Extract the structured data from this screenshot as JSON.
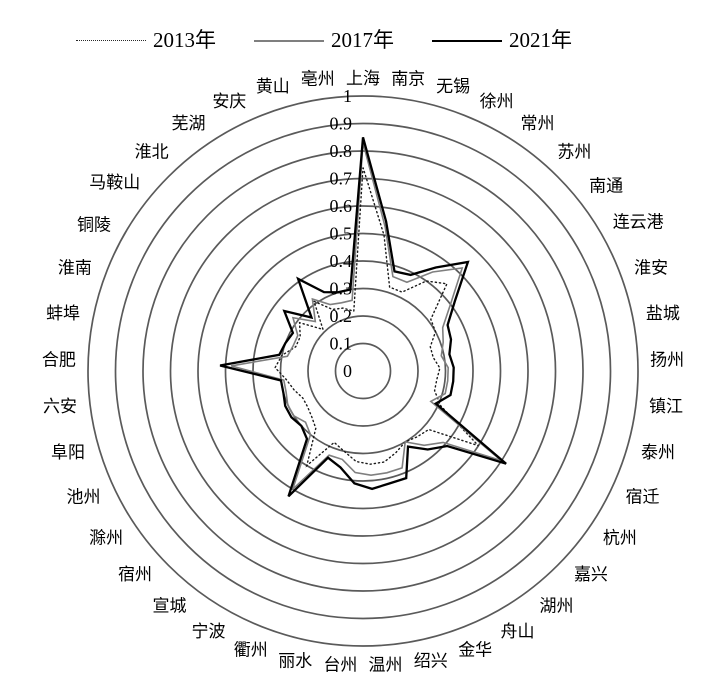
{
  "legend": {
    "items": [
      {
        "label": "2013年",
        "style": "dotted",
        "color": "#1a1a1a"
      },
      {
        "label": "2017年",
        "style": "solid",
        "color": "#7f7f7f"
      },
      {
        "label": "2021年",
        "style": "solid-bold",
        "color": "#000000"
      }
    ]
  },
  "chart_data": {
    "type": "radar",
    "title": "",
    "grid": "circular",
    "legend_position": "top",
    "axis": {
      "min": 0,
      "max": 1,
      "step": 0.1,
      "tick_labels": [
        "0",
        "0.1",
        "0.2",
        "0.3",
        "0.4",
        "0.5",
        "0.6",
        "0.7",
        "0.8",
        "0.9",
        "1"
      ]
    },
    "categories": [
      "上海",
      "南京",
      "无锡",
      "徐州",
      "常州",
      "苏州",
      "南通",
      "连云港",
      "淮安",
      "盐城",
      "扬州",
      "镇江",
      "泰州",
      "宿迁",
      "杭州",
      "嘉兴",
      "湖州",
      "舟山",
      "金华",
      "绍兴",
      "温州",
      "台州",
      "丽水",
      "衢州",
      "宁波",
      "宣城",
      "宿州",
      "滁州",
      "池州",
      "阜阳",
      "六安",
      "合肥",
      "蚌埠",
      "淮南",
      "铜陵",
      "马鞍山",
      "淮北",
      "芜湖",
      "安庆",
      "黄山",
      "亳州"
    ],
    "series": [
      {
        "name": "2013年",
        "color": "#1a1a1a",
        "line_style": "dotted",
        "values": [
          0.74,
          0.5,
          0.32,
          0.32,
          0.4,
          0.44,
          0.31,
          0.3,
          0.26,
          0.26,
          0.28,
          0.27,
          0.27,
          0.31,
          0.5,
          0.32,
          0.31,
          0.3,
          0.32,
          0.34,
          0.34,
          0.33,
          0.3,
          0.28,
          0.4,
          0.27,
          0.25,
          0.24,
          0.24,
          0.26,
          0.28,
          0.32,
          0.3,
          0.26,
          0.26,
          0.29,
          0.21,
          0.31,
          0.25,
          0.24,
          0.22
        ]
      },
      {
        "name": "2017年",
        "color": "#7f7f7f",
        "line_style": "solid",
        "values": [
          0.83,
          0.53,
          0.36,
          0.36,
          0.44,
          0.52,
          0.4,
          0.33,
          0.31,
          0.29,
          0.31,
          0.31,
          0.31,
          0.27,
          0.6,
          0.39,
          0.35,
          0.3,
          0.38,
          0.38,
          0.38,
          0.37,
          0.33,
          0.33,
          0.5,
          0.3,
          0.28,
          0.3,
          0.3,
          0.29,
          0.29,
          0.48,
          0.28,
          0.27,
          0.27,
          0.32,
          0.25,
          0.32,
          0.27,
          0.26,
          0.26
        ]
      },
      {
        "name": "2021年",
        "color": "#000000",
        "line_style": "solid-bold",
        "values": [
          0.85,
          0.55,
          0.38,
          0.39,
          0.46,
          0.55,
          0.42,
          0.35,
          0.34,
          0.32,
          0.33,
          0.33,
          0.33,
          0.29,
          0.62,
          0.41,
          0.37,
          0.32,
          0.42,
          0.42,
          0.43,
          0.41,
          0.36,
          0.34,
          0.53,
          0.32,
          0.3,
          0.31,
          0.31,
          0.3,
          0.3,
          0.52,
          0.31,
          0.3,
          0.29,
          0.36,
          0.27,
          0.41,
          0.32,
          0.3,
          0.3
        ]
      }
    ],
    "ring_color": "#5a5a5a",
    "center": {
      "x": 363,
      "y": 371
    },
    "max_radius_px": 275
  }
}
